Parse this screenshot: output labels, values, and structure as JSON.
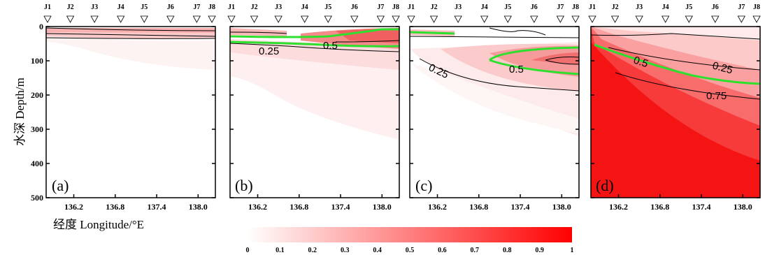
{
  "chart_data": {
    "type": "heatmap",
    "ylabel": "水深 Depth/m",
    "xlabel": "经度 Longitude/°E",
    "colorbar": {
      "min": 0,
      "max": 1,
      "tick_labels": [
        "0",
        "0.1",
        "0.2",
        "0.3",
        "0.4",
        "0.5",
        "0.6",
        "0.7",
        "0.8",
        "0.9",
        "1"
      ],
      "color_low": "#ffffff",
      "color_high": "#ff0000"
    },
    "xlim": [
      135.8,
      138.25
    ],
    "ylim": [
      500,
      0
    ],
    "x_tick_labels": [
      "136.2",
      "136.8",
      "137.4",
      "138.0"
    ],
    "y_tick_labels": [
      "0",
      "100",
      "200",
      "300",
      "400",
      "500"
    ],
    "stations": [
      "J1",
      "J2",
      "J3",
      "J4",
      "J5",
      "J6",
      "J7",
      "J8"
    ],
    "station_longitudes": [
      135.82,
      136.15,
      136.5,
      136.88,
      137.22,
      137.6,
      137.98,
      138.2
    ],
    "panels": [
      {
        "label": "(a)",
        "contour_labels": []
      },
      {
        "label": "(b)",
        "contour_labels": [
          "0.25",
          "0.5"
        ]
      },
      {
        "label": "(c)",
        "contour_labels": [
          "0.25",
          "0.5"
        ]
      },
      {
        "label": "(d)",
        "contour_labels": [
          "0.5",
          "0.25",
          "0.75"
        ]
      }
    ]
  }
}
